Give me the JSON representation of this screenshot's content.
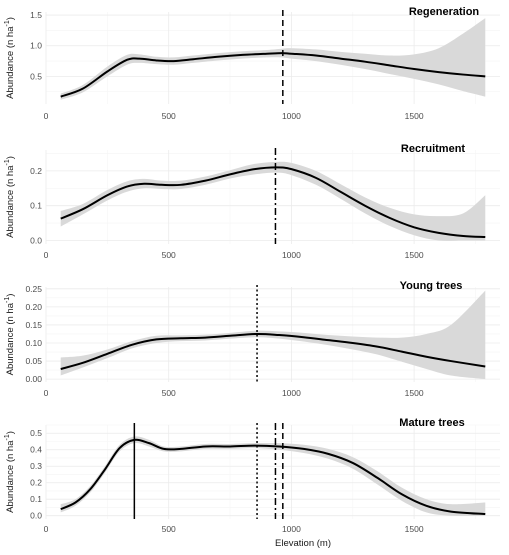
{
  "chart_data": [
    {
      "type": "line",
      "title": "Regeneration",
      "ylabel": "Abundance (n ha",
      "ylabel_sup": "-1",
      "ylabel_close": ")",
      "xlim": [
        0,
        1850
      ],
      "ylim": [
        0.05,
        1.55
      ],
      "yticks": [
        "1.5",
        "1.0",
        "0.5"
      ],
      "ytick_values": [
        1.5,
        1.0,
        0.5
      ],
      "xticks": [
        "0",
        "500",
        "1000",
        "1500"
      ],
      "xtick_values": [
        0,
        500,
        1000,
        1500
      ],
      "x": [
        60,
        150,
        250,
        330,
        380,
        450,
        520,
        600,
        700,
        800,
        900,
        960,
        1000,
        1100,
        1200,
        1300,
        1400,
        1500,
        1600,
        1700,
        1790
      ],
      "y": [
        0.17,
        0.3,
        0.58,
        0.77,
        0.79,
        0.76,
        0.75,
        0.78,
        0.82,
        0.85,
        0.87,
        0.88,
        0.87,
        0.84,
        0.79,
        0.74,
        0.68,
        0.62,
        0.57,
        0.53,
        0.5
      ],
      "lower": [
        0.12,
        0.24,
        0.5,
        0.69,
        0.72,
        0.7,
        0.69,
        0.72,
        0.76,
        0.79,
        0.81,
        0.81,
        0.79,
        0.75,
        0.69,
        0.62,
        0.54,
        0.46,
        0.37,
        0.26,
        0.17
      ],
      "upper": [
        0.22,
        0.36,
        0.66,
        0.85,
        0.86,
        0.82,
        0.81,
        0.84,
        0.88,
        0.91,
        0.93,
        0.95,
        0.96,
        0.94,
        0.9,
        0.87,
        0.84,
        0.86,
        0.96,
        1.2,
        1.45
      ],
      "vlines": [
        {
          "x": 965,
          "style": "dashed"
        }
      ]
    },
    {
      "type": "line",
      "title": "Recruitment",
      "ylabel": "Abundance (n ha",
      "ylabel_sup": "-1",
      "ylabel_close": ")",
      "xlim": [
        0,
        1850
      ],
      "ylim": [
        -0.01,
        0.26
      ],
      "yticks": [
        "0.2",
        "0.1",
        "0.0"
      ],
      "ytick_values": [
        0.2,
        0.1,
        0.0
      ],
      "xticks": [
        "0",
        "500",
        "1000",
        "1500"
      ],
      "xtick_values": [
        0,
        500,
        1000,
        1500
      ],
      "x": [
        60,
        150,
        250,
        330,
        400,
        470,
        550,
        650,
        750,
        850,
        940,
        1000,
        1100,
        1200,
        1300,
        1400,
        1500,
        1600,
        1700,
        1790
      ],
      "y": [
        0.063,
        0.09,
        0.13,
        0.155,
        0.163,
        0.16,
        0.16,
        0.172,
        0.19,
        0.205,
        0.21,
        0.205,
        0.18,
        0.14,
        0.1,
        0.065,
        0.038,
        0.022,
        0.013,
        0.01
      ],
      "lower": [
        0.04,
        0.075,
        0.115,
        0.14,
        0.15,
        0.148,
        0.148,
        0.16,
        0.178,
        0.19,
        0.195,
        0.188,
        0.16,
        0.12,
        0.078,
        0.042,
        0.015,
        0.0,
        0.0,
        0.0
      ],
      "upper": [
        0.085,
        0.105,
        0.145,
        0.17,
        0.177,
        0.172,
        0.172,
        0.184,
        0.202,
        0.22,
        0.226,
        0.223,
        0.2,
        0.162,
        0.124,
        0.094,
        0.075,
        0.07,
        0.078,
        0.13
      ],
      "vlines": [
        {
          "x": 935,
          "style": "dashdot"
        }
      ]
    },
    {
      "type": "line",
      "title": "Young trees",
      "ylabel": "Abundance (n ha",
      "ylabel_sup": "-1",
      "ylabel_close": ")",
      "xlim": [
        0,
        1850
      ],
      "ylim": [
        -0.008,
        0.255
      ],
      "yticks": [
        "0.25",
        "0.20",
        "0.15",
        "0.10",
        "0.05",
        "0.00"
      ],
      "ytick_values": [
        0.25,
        0.2,
        0.15,
        0.1,
        0.05,
        0.0
      ],
      "xticks": [
        "0",
        "500",
        "1000",
        "1500"
      ],
      "xtick_values": [
        0,
        500,
        1000,
        1500
      ],
      "x": [
        60,
        150,
        250,
        350,
        450,
        550,
        650,
        750,
        860,
        950,
        1050,
        1150,
        1250,
        1350,
        1450,
        1550,
        1650,
        1790
      ],
      "y": [
        0.028,
        0.045,
        0.07,
        0.095,
        0.11,
        0.113,
        0.115,
        0.12,
        0.125,
        0.122,
        0.116,
        0.108,
        0.1,
        0.09,
        0.076,
        0.062,
        0.05,
        0.035
      ],
      "lower": [
        0.01,
        0.032,
        0.058,
        0.085,
        0.1,
        0.105,
        0.107,
        0.112,
        0.116,
        0.112,
        0.104,
        0.094,
        0.082,
        0.068,
        0.048,
        0.028,
        0.01,
        0.0
      ],
      "upper": [
        0.06,
        0.065,
        0.082,
        0.105,
        0.12,
        0.121,
        0.123,
        0.128,
        0.134,
        0.132,
        0.128,
        0.122,
        0.118,
        0.115,
        0.115,
        0.125,
        0.15,
        0.245
      ],
      "vlines": [
        {
          "x": 860,
          "style": "dotted"
        }
      ]
    },
    {
      "type": "line",
      "title": "Mature trees",
      "ylabel": "Abundance (n ha",
      "ylabel_sup": "-1",
      "ylabel_close": ")",
      "xlabel": "Elevation (m)",
      "xlim": [
        0,
        1850
      ],
      "ylim": [
        -0.02,
        0.55
      ],
      "yticks": [
        "0.5",
        "0.4",
        "0.3",
        "0.2",
        "0.1",
        "0.0"
      ],
      "ytick_values": [
        0.5,
        0.4,
        0.3,
        0.2,
        0.1,
        0.0
      ],
      "xticks": [
        "0",
        "500",
        "1000",
        "1500"
      ],
      "xtick_values": [
        0,
        500,
        1000,
        1500
      ],
      "x": [
        60,
        120,
        180,
        240,
        300,
        360,
        420,
        480,
        550,
        650,
        750,
        850,
        950,
        1050,
        1150,
        1250,
        1350,
        1450,
        1550,
        1650,
        1790
      ],
      "y": [
        0.04,
        0.08,
        0.16,
        0.28,
        0.41,
        0.46,
        0.44,
        0.405,
        0.405,
        0.42,
        0.42,
        0.425,
        0.42,
        0.405,
        0.375,
        0.32,
        0.23,
        0.13,
        0.06,
        0.025,
        0.01
      ],
      "lower": [
        0.02,
        0.06,
        0.14,
        0.26,
        0.39,
        0.44,
        0.42,
        0.39,
        0.39,
        0.405,
        0.405,
        0.41,
        0.4,
        0.38,
        0.345,
        0.285,
        0.19,
        0.09,
        0.02,
        0.0,
        0.0
      ],
      "upper": [
        0.07,
        0.1,
        0.18,
        0.3,
        0.43,
        0.48,
        0.46,
        0.42,
        0.42,
        0.435,
        0.435,
        0.44,
        0.44,
        0.43,
        0.405,
        0.355,
        0.27,
        0.17,
        0.1,
        0.07,
        0.08
      ],
      "vlines": [
        {
          "x": 360,
          "style": "solid"
        },
        {
          "x": 860,
          "style": "dotted"
        },
        {
          "x": 935,
          "style": "dashdot"
        },
        {
          "x": 965,
          "style": "dashed"
        }
      ]
    }
  ]
}
